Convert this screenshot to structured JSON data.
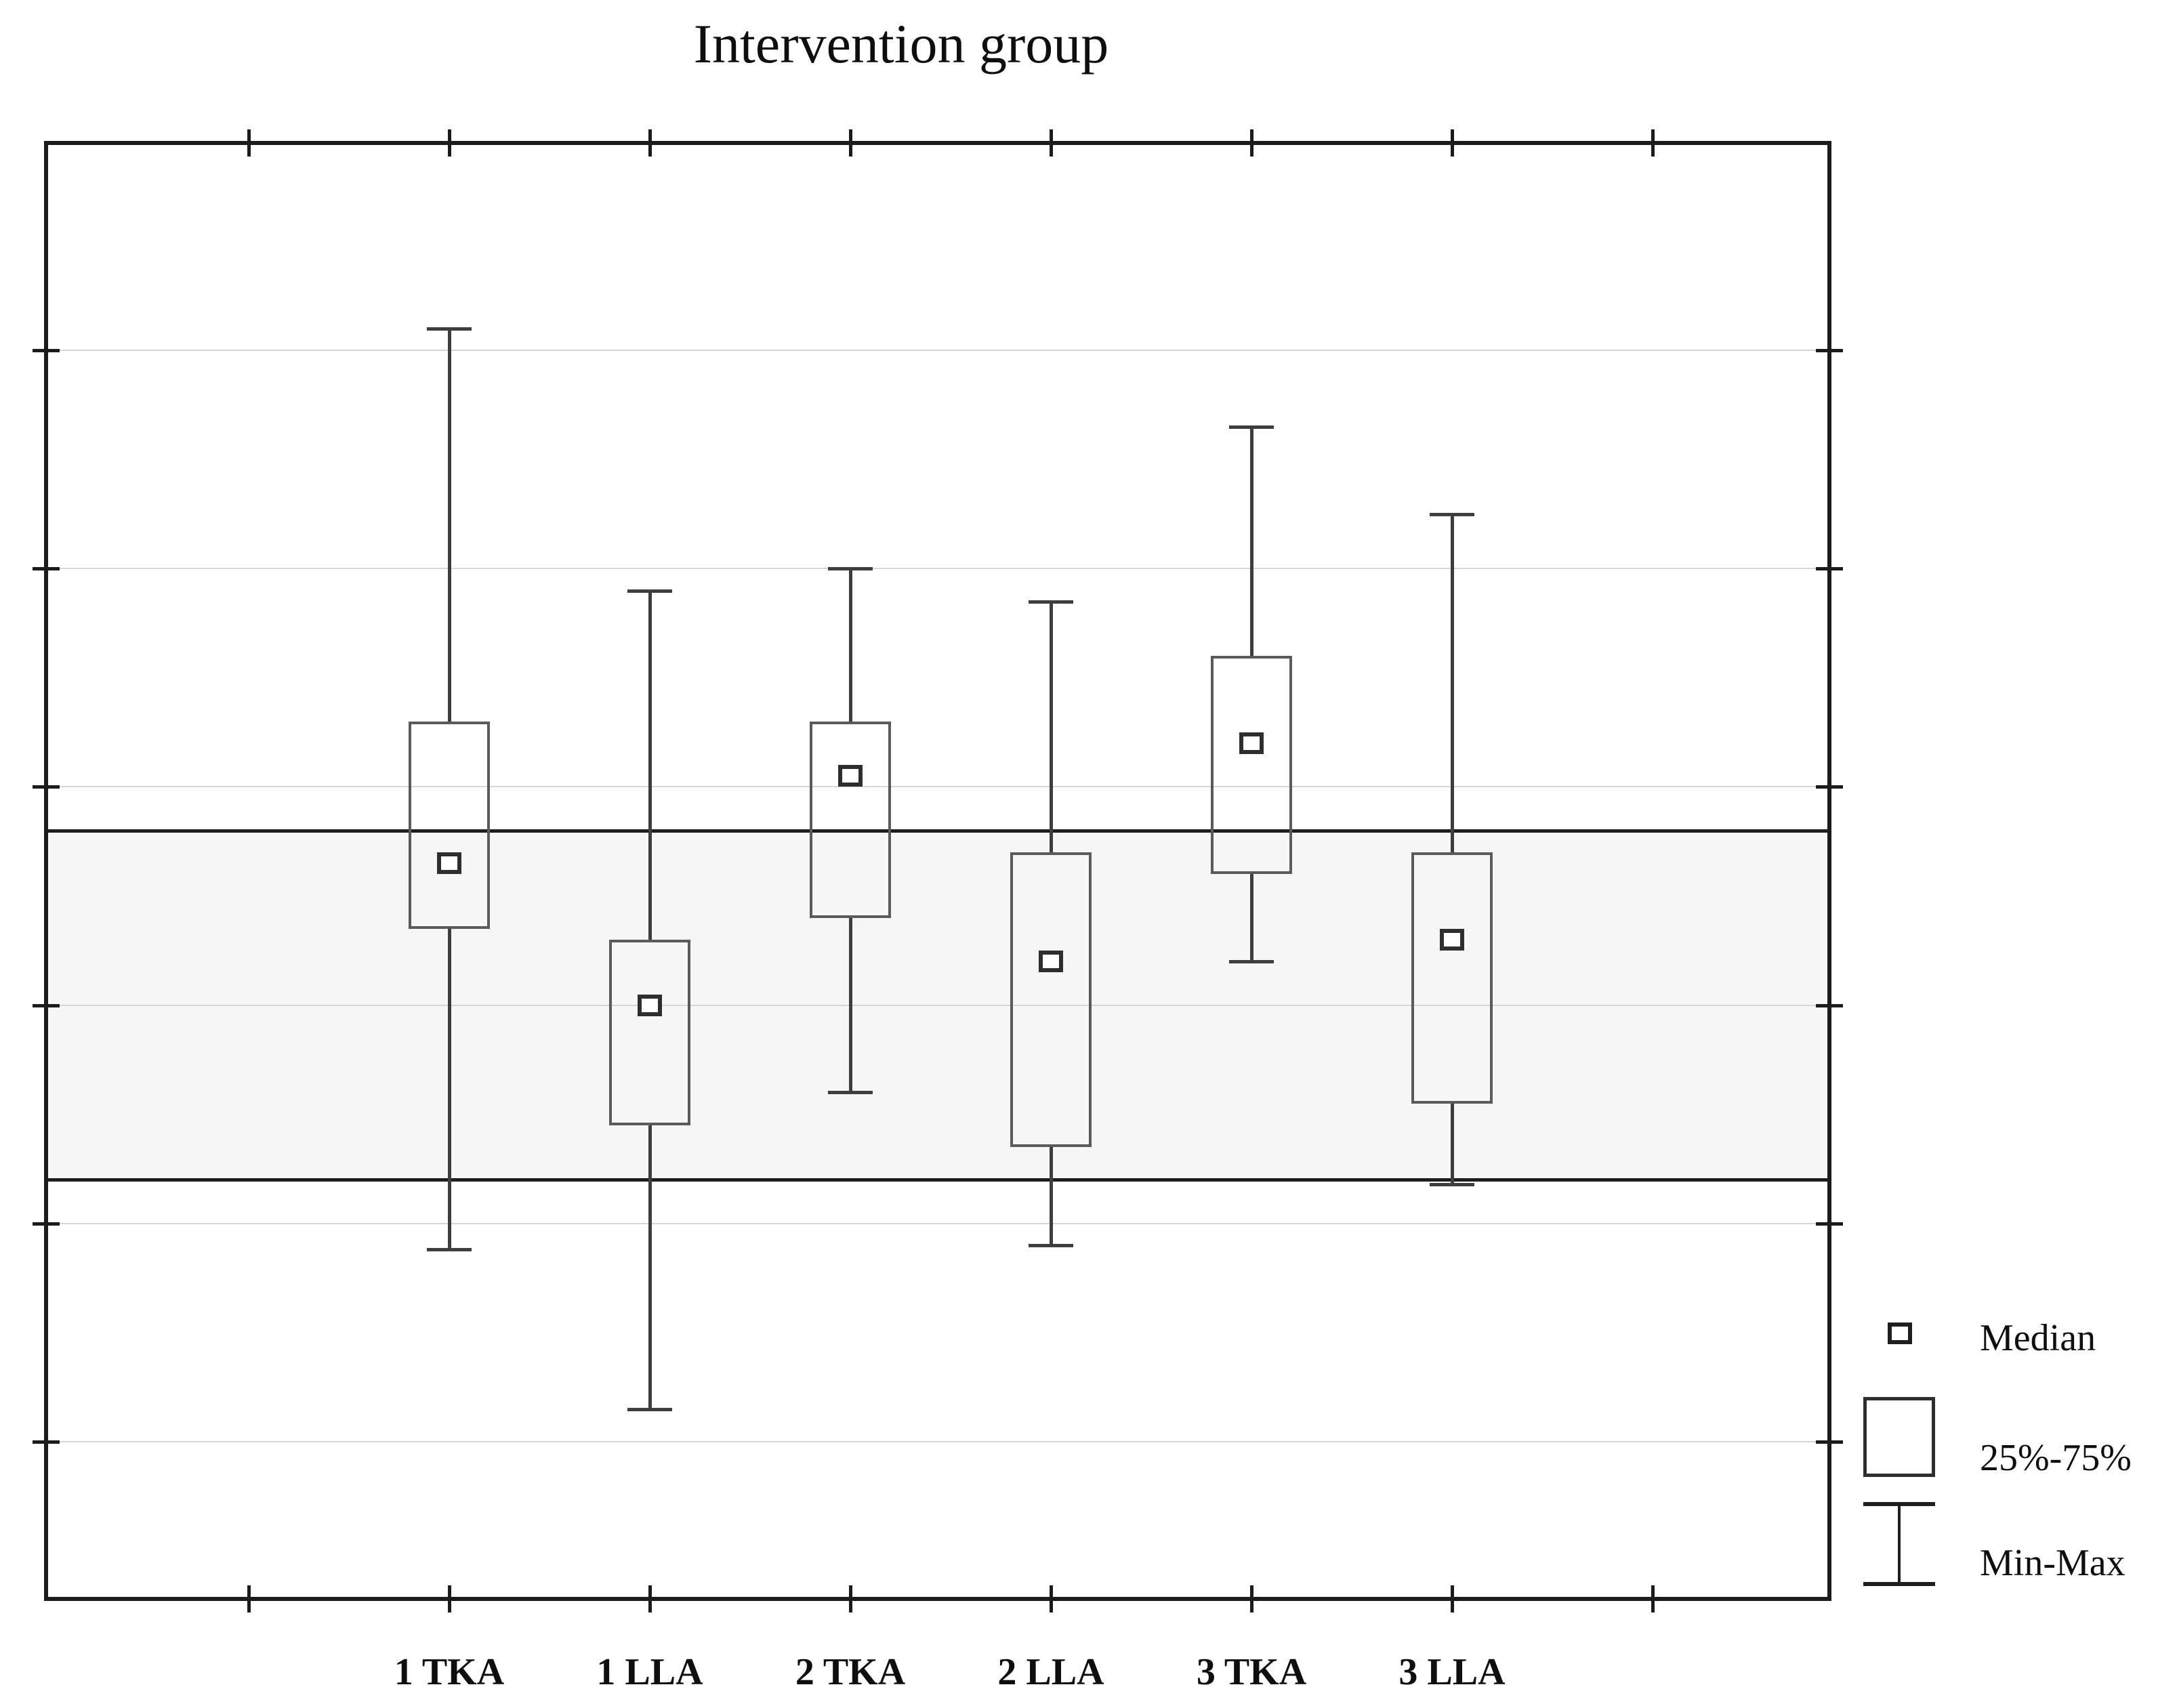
{
  "title": "Intervention group",
  "legend": {
    "items": [
      {
        "icon": "median-square-icon",
        "label": "Median"
      },
      {
        "icon": "iqr-box-icon",
        "label": "25%-75%"
      },
      {
        "icon": "min-max-whisker-icon",
        "label": "Min-Max"
      }
    ]
  },
  "y_axis": {
    "numeric_labels_visible": false,
    "gridline_values": [
      1,
      2,
      3,
      4,
      5,
      6
    ]
  },
  "chart_data": {
    "type": "box",
    "title": "Intervention group",
    "categories": [
      "1 TKA",
      "1 LLA",
      "2 TKA",
      "2 LLA",
      "3 TKA",
      "3 LLA"
    ],
    "series": [
      {
        "name": "1 TKA",
        "min": 1.88,
        "q1": 3.35,
        "median": 3.65,
        "q3": 4.3,
        "max": 6.1
      },
      {
        "name": "1 LLA",
        "min": 1.15,
        "q1": 2.45,
        "median": 3.0,
        "q3": 3.3,
        "max": 4.9
      },
      {
        "name": "2 TKA",
        "min": 2.6,
        "q1": 3.4,
        "median": 4.05,
        "q3": 4.3,
        "max": 5.0
      },
      {
        "name": "2 LLA",
        "min": 1.9,
        "q1": 2.35,
        "median": 3.2,
        "q3": 3.7,
        "max": 4.85
      },
      {
        "name": "3 TKA",
        "min": 3.2,
        "q1": 3.6,
        "median": 4.2,
        "q3": 4.6,
        "max": 5.65
      },
      {
        "name": "3 LLA",
        "min": 2.18,
        "q1": 2.55,
        "median": 3.3,
        "q3": 3.7,
        "max": 5.25
      }
    ],
    "reference_band": {
      "from": 2.2,
      "to": 3.8
    },
    "ylim": [
      0.27,
      6.96
    ],
    "gridlines_y": [
      1,
      2,
      3,
      4,
      5,
      6
    ],
    "y_axis_note": "y axis has no visible numeric labels; values are in gridline units (gridlines at 1-6)",
    "xlabel": "",
    "ylabel": "",
    "grid": true,
    "legend": [
      "Median",
      "25%-75%",
      "Min-Max"
    ],
    "legend_position": "bottom-right"
  },
  "colors": {
    "background": "#ffffff",
    "frame": "#1c1c1c",
    "gridline": "#d7d7d7",
    "band_fill": "#f6f6f6",
    "band_border": "#1e1e1e",
    "box_border": "#5a5a5a",
    "whisker": "#3e3e3e",
    "median_border": "#2e2e2e",
    "median_fill": "#ffffff",
    "text": "#0e0e0e"
  }
}
